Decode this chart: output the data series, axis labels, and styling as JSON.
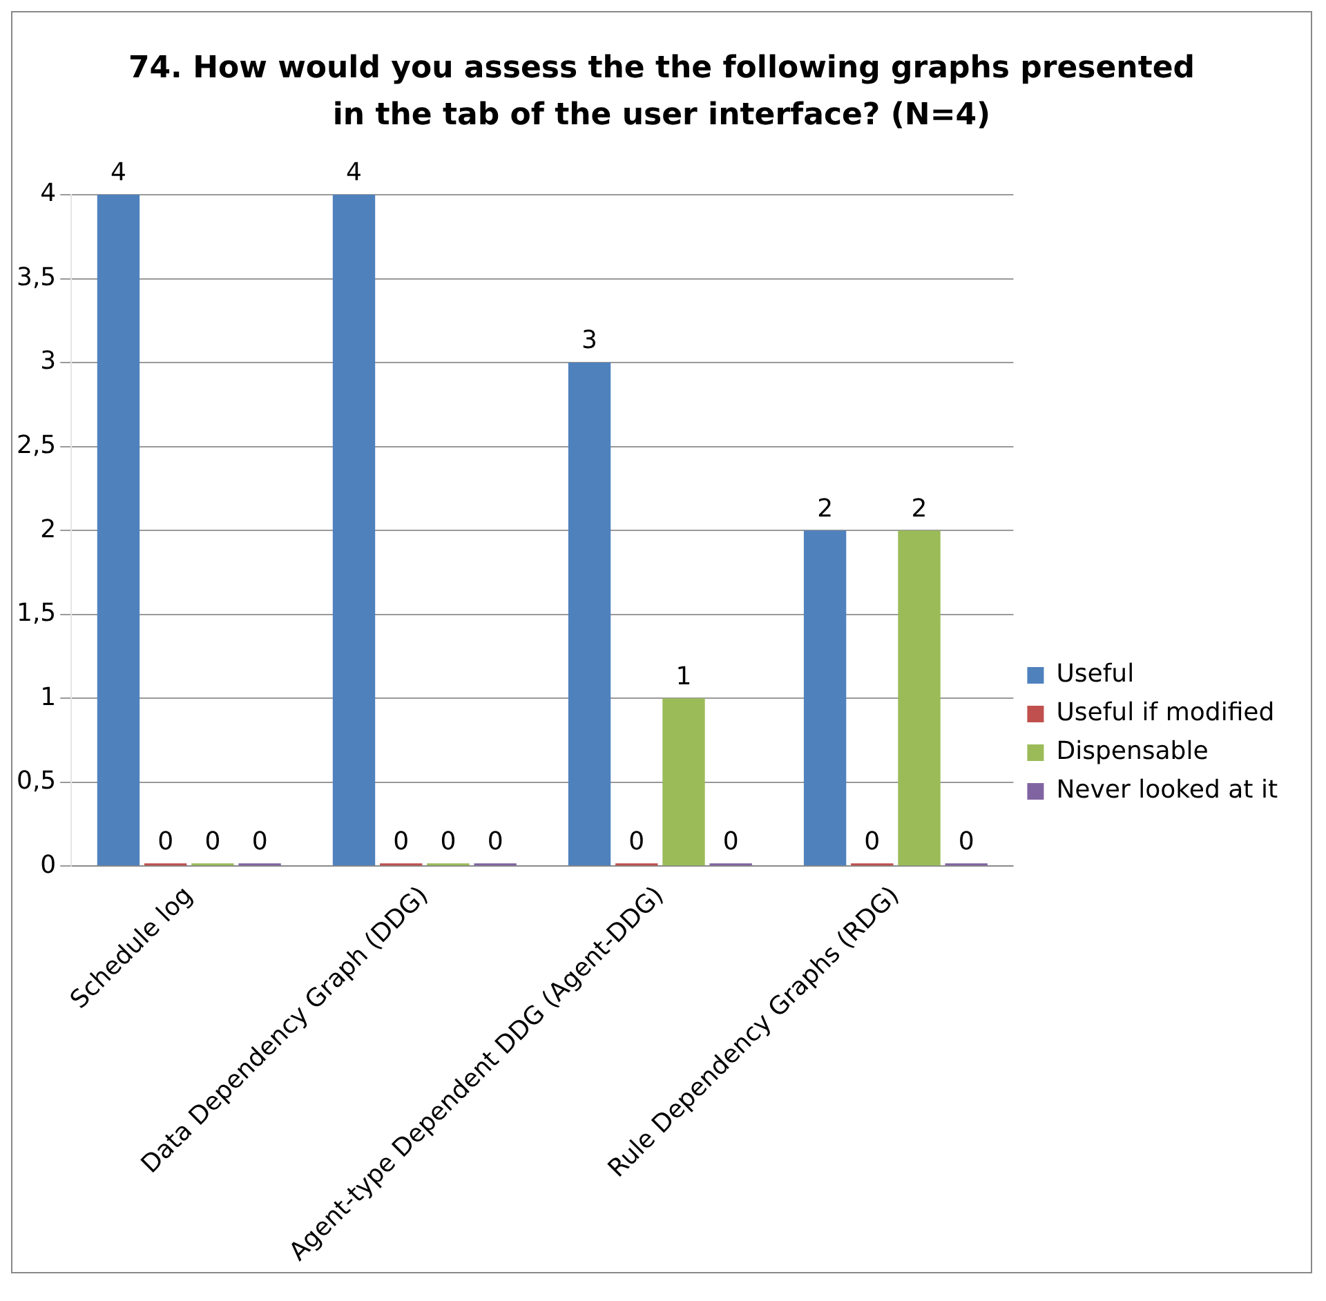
{
  "chart_data": {
    "type": "bar",
    "title": "74. How would you assess the the following graphs presented in the tab of the user interface? (N=4)",
    "categories": [
      "Schedule log",
      "Data Dependency Graph (DDG)",
      "Agent-type Dependent DDG (Agent-DDG)",
      "Rule Dependency Graphs (RDG)"
    ],
    "series": [
      {
        "name": "Useful",
        "color": "#4f81bd",
        "values": [
          4,
          4,
          3,
          2
        ]
      },
      {
        "name": "Useful if modified",
        "color": "#c0504d",
        "values": [
          0,
          0,
          0,
          0
        ]
      },
      {
        "name": "Dispensable",
        "color": "#9bbb59",
        "values": [
          0,
          0,
          1,
          2
        ]
      },
      {
        "name": "Never looked at it",
        "color": "#8064a2",
        "values": [
          0,
          0,
          0,
          0
        ]
      }
    ],
    "ylim": [
      0,
      4
    ],
    "yticks": [
      0,
      {
        "value": 0.5,
        "label": "0,5"
      },
      1,
      {
        "value": 1.5,
        "label": "1,5"
      },
      2,
      {
        "value": 2.5,
        "label": "2,5"
      },
      3,
      {
        "value": 3.5,
        "label": "3,5"
      },
      4
    ],
    "grid": "y",
    "legend": "right",
    "data_labels": true
  }
}
